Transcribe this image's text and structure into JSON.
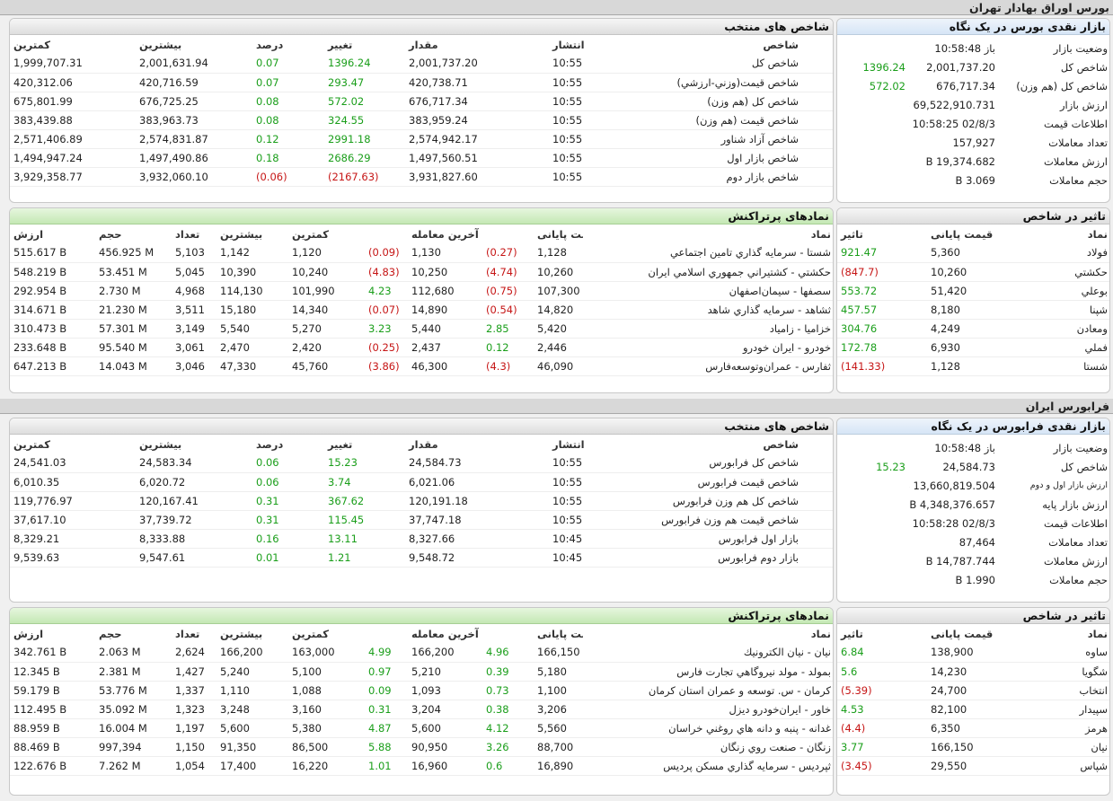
{
  "tehran": {
    "section_title": "بورس اوراق بهادار تهران",
    "glance": {
      "title": "بازار نقدی بورس در یک نگاه",
      "rows": [
        {
          "label": "وضعیت بازار",
          "value": "باز 10:58:48",
          "change": ""
        },
        {
          "label": "شاخص کل",
          "value": "2,001,737.20",
          "change": "1396.24"
        },
        {
          "label": "شاخص کل (هم وزن)",
          "value": "676,717.34",
          "change": "572.02"
        },
        {
          "label": "ارزش بازار",
          "value": "69,522,910.731 B",
          "change": ""
        },
        {
          "label": "اطلاعات قیمت",
          "value": "02/8/3 10:58:25",
          "change": ""
        },
        {
          "label": "تعداد معاملات",
          "value": "157,927",
          "change": ""
        },
        {
          "label": "ارزش معاملات",
          "value": "19,374.682 B",
          "change": ""
        },
        {
          "label": "حجم معاملات",
          "value": "3.069 B",
          "change": ""
        }
      ]
    },
    "indices": {
      "title": "شاخص های منتخب",
      "headers": [
        "شاخص",
        "انتشار",
        "مقدار",
        "تغییر",
        "درصد",
        "بیشترین",
        "کمترین"
      ],
      "rows": [
        [
          "شاخص كل",
          "10:55",
          "2,001,737.20",
          "1396.24",
          "0.07",
          "2,001,631.94",
          "1,999,707.31"
        ],
        [
          "شاخص قيمت(وزني-ارزشي)",
          "10:55",
          "420,738.71",
          "293.47",
          "0.07",
          "420,716.59",
          "420,312.06"
        ],
        [
          "شاخص كل (هم وزن)",
          "10:55",
          "676,717.34",
          "572.02",
          "0.08",
          "676,725.25",
          "675,801.99"
        ],
        [
          "شاخص قيمت (هم وزن)",
          "10:55",
          "383,959.24",
          "324.55",
          "0.08",
          "383,963.73",
          "383,439.88"
        ],
        [
          "شاخص آزاد شناور",
          "10:55",
          "2,574,942.17",
          "2991.18",
          "0.12",
          "2,574,831.87",
          "2,571,406.89"
        ],
        [
          "شاخص بازار اول",
          "10:55",
          "1,497,560.51",
          "2686.29",
          "0.18",
          "1,497,490.86",
          "1,494,947.24"
        ],
        [
          "شاخص بازار دوم",
          "10:55",
          "3,931,827.60",
          "(2167.63)",
          "(0.06)",
          "3,932,060.10",
          "3,929,358.77"
        ]
      ]
    },
    "impact": {
      "title": "تاثیر در شاخص",
      "headers": [
        "نماد",
        "قیمت پایانی",
        "تاثیر"
      ],
      "rows": [
        [
          "فولاد",
          "5,360",
          "921.47"
        ],
        [
          "حکشتي",
          "10,260",
          "(847.7)"
        ],
        [
          "بوعلي",
          "51,420",
          "553.72"
        ],
        [
          "شپنا",
          "8,180",
          "457.57"
        ],
        [
          "ومعادن",
          "4,249",
          "304.76"
        ],
        [
          "فملي",
          "6,930",
          "172.78"
        ],
        [
          "شستا",
          "1,128",
          "(141.33)"
        ]
      ]
    },
    "active": {
      "title": "نمادهای پرتراکنش",
      "headers": [
        "نماد",
        "قیمت پایانی",
        "",
        "آخرین معامله",
        "",
        "کمترین",
        "بیشترین",
        "تعداد",
        "حجم",
        "ارزش"
      ],
      "rows": [
        [
          "شستا - سرمايه گذاري تامين اجتماعي",
          "1,128",
          "(0.27)",
          "1,130",
          "(0.09)",
          "1,120",
          "1,142",
          "5,103",
          "456.925 M",
          "515.617 B"
        ],
        [
          "حکشتي - کشتيراني جمهوري اسلامي ايران",
          "10,260",
          "(4.74)",
          "10,250",
          "(4.83)",
          "10,240",
          "10,390",
          "5,045",
          "53.451 M",
          "548.219 B"
        ],
        [
          "سصفها - سيمان‌اصفهان",
          "107,300",
          "(0.75)",
          "112,680",
          "4.23",
          "101,990",
          "114,130",
          "4,968",
          "2.730 M",
          "292.954 B"
        ],
        [
          "ثشاهد - سرمايه گذاري شاهد",
          "14,820",
          "(0.54)",
          "14,890",
          "(0.07)",
          "14,340",
          "15,180",
          "3,511",
          "21.230 M",
          "314.671 B"
        ],
        [
          "خزاميا - زامياد",
          "5,420",
          "2.85",
          "5,440",
          "3.23",
          "5,270",
          "5,540",
          "3,149",
          "57.301 M",
          "310.473 B"
        ],
        [
          "خودرو - ايران‌ خودرو",
          "2,446",
          "0.12",
          "2,437",
          "(0.25)",
          "2,420",
          "2,470",
          "3,061",
          "95.540 M",
          "233.648 B"
        ],
        [
          "ثفارس - عمران‌وتوسعه‌فارس",
          "46,090",
          "(4.3)",
          "46,300",
          "(3.86)",
          "45,760",
          "47,330",
          "3,046",
          "14.043 M",
          "647.213 B"
        ]
      ]
    }
  },
  "fara": {
    "section_title": "فرابورس ایران",
    "glance": {
      "title": "بازار نقدی فرابورس در یک نگاه",
      "rows": [
        {
          "label": "وضعیت بازار",
          "value": "باز 10:58:48",
          "change": ""
        },
        {
          "label": "شاخص کل",
          "value": "24,584.73",
          "change": "15.23"
        },
        {
          "label": "ارزش بازار اول و دوم",
          "value": "13,660,819.504 B",
          "change": ""
        },
        {
          "label": "ارزش بازار پایه",
          "value": "4,348,376.657 B",
          "change": ""
        },
        {
          "label": "اطلاعات قیمت",
          "value": "02/8/3 10:58:28",
          "change": ""
        },
        {
          "label": "تعداد معاملات",
          "value": "87,464",
          "change": ""
        },
        {
          "label": "ارزش معاملات",
          "value": "14,787.744 B",
          "change": ""
        },
        {
          "label": "حجم معاملات",
          "value": "1.990 B",
          "change": ""
        }
      ]
    },
    "indices": {
      "title": "شاخص های منتخب",
      "headers": [
        "شاخص",
        "انتشار",
        "مقدار",
        "تغییر",
        "درصد",
        "بیشترین",
        "کمترین"
      ],
      "rows": [
        [
          "شاخص كل فرابورس",
          "10:55",
          "24,584.73",
          "15.23",
          "0.06",
          "24,583.34",
          "24,541.03"
        ],
        [
          "شاخص قيمت فرابورس",
          "10:55",
          "6,021.06",
          "3.74",
          "0.06",
          "6,020.72",
          "6,010.35"
        ],
        [
          "شاخص كل هم وزن فرابورس",
          "10:55",
          "120,191.18",
          "367.62",
          "0.31",
          "120,167.41",
          "119,776.97"
        ],
        [
          "شاخص قيمت هم وزن فرابورس",
          "10:55",
          "37,747.18",
          "115.45",
          "0.31",
          "37,739.72",
          "37,617.10"
        ],
        [
          "بازار اول فرابورس",
          "10:45",
          "8,327.66",
          "13.11",
          "0.16",
          "8,333.88",
          "8,329.21"
        ],
        [
          "بازار دوم فرابورس",
          "10:45",
          "9,548.72",
          "1.21",
          "0.01",
          "9,547.61",
          "9,539.63"
        ]
      ]
    },
    "impact": {
      "title": "تاثیر در شاخص",
      "headers": [
        "نماد",
        "قیمت پایانی",
        "تاثیر"
      ],
      "rows": [
        [
          "ساوه",
          "138,900",
          "6.84"
        ],
        [
          "شگويا",
          "14,230",
          "5.6"
        ],
        [
          "انتخاب",
          "24,700",
          "(5.39)"
        ],
        [
          "سپيدار",
          "82,100",
          "4.53"
        ],
        [
          "هرمز",
          "6,350",
          "(4.4)"
        ],
        [
          "نيان",
          "166,150",
          "3.77"
        ],
        [
          "شپاس",
          "29,550",
          "(3.45)"
        ]
      ]
    },
    "active": {
      "title": "نمادهای پرتراکنش",
      "headers": [
        "نماد",
        "قیمت پایانی",
        "",
        "آخرین معامله",
        "",
        "کمترین",
        "بیشترین",
        "تعداد",
        "حجم",
        "ارزش"
      ],
      "rows": [
        [
          "نيان - نيان الكترونيك",
          "166,150",
          "4.96",
          "166,200",
          "4.99",
          "163,000",
          "166,200",
          "2,624",
          "2.063 M",
          "342.761 B"
        ],
        [
          "بمولد - مولد نيروگاهي تجارت فارس",
          "5,180",
          "0.39",
          "5,210",
          "0.97",
          "5,100",
          "5,240",
          "1,427",
          "2.381 M",
          "12.345 B"
        ],
        [
          "كرمان - س. توسعه و عمران استان كرمان",
          "1,100",
          "0.73",
          "1,093",
          "0.09",
          "1,088",
          "1,110",
          "1,337",
          "53.776 M",
          "59.179 B"
        ],
        [
          "خاور - ايران‌خودرو ديزل",
          "3,206",
          "0.38",
          "3,204",
          "0.31",
          "3,160",
          "3,248",
          "1,323",
          "35.092 M",
          "112.495 B"
        ],
        [
          "غدانه - پنبه و دانه هاي روغني خراسان",
          "5,560",
          "4.12",
          "5,600",
          "4.87",
          "5,380",
          "5,600",
          "1,197",
          "16.004 M",
          "88.959 B"
        ],
        [
          "زنگان - صنعت روي زنگان",
          "88,700",
          "3.26",
          "90,950",
          "5.88",
          "86,500",
          "91,350",
          "1,150",
          "997,394",
          "88.469 B"
        ],
        [
          "ثپرديس - سرمايه گذاري مسكن پرديس",
          "16,890",
          "0.6",
          "16,960",
          "1.01",
          "16,220",
          "17,400",
          "1,054",
          "7.262 M",
          "122.676 B"
        ]
      ]
    }
  }
}
